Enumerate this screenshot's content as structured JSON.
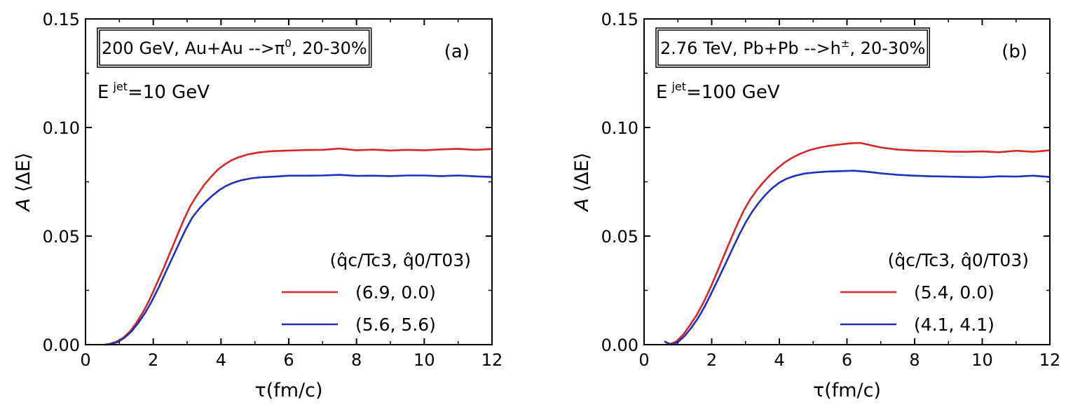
{
  "chart_data": [
    {
      "type": "line",
      "panel_label": "(a)",
      "annotation_box": {
        "main": "200 GeV, Au+Au -->π",
        "sup": "0",
        "tail": ", 20-30%"
      },
      "energy_label": {
        "base": "E",
        "sup": "jet",
        "tail": "=10 GeV"
      },
      "xlabel": "τ(fm/c)",
      "ylabel": {
        "italic": "A",
        "rest": " ⟨ΔE⟩"
      },
      "xlim": [
        0,
        12
      ],
      "ylim": [
        0,
        0.15
      ],
      "xticks": [
        "0",
        "2",
        "4",
        "6",
        "8",
        "10",
        "12"
      ],
      "yticks": [
        "0.00",
        "0.05",
        "0.10",
        "0.15"
      ],
      "legend_title": "(q̂c/Tc3, q̂0/T03)",
      "grid": false,
      "legend_position": "bottom-right",
      "series": [
        {
          "name": "(6.9, 0.0)",
          "color": "#d62728",
          "points": [
            [
              0.55,
              0.0
            ],
            [
              0.7,
              0.0003
            ],
            [
              0.9,
              0.0013
            ],
            [
              1.1,
              0.003
            ],
            [
              1.3,
              0.0058
            ],
            [
              1.5,
              0.01
            ],
            [
              1.7,
              0.015
            ],
            [
              1.9,
              0.021
            ],
            [
              2.1,
              0.028
            ],
            [
              2.3,
              0.035
            ],
            [
              2.5,
              0.0425
            ],
            [
              2.7,
              0.05
            ],
            [
              2.9,
              0.0575
            ],
            [
              3.1,
              0.064
            ],
            [
              3.3,
              0.069
            ],
            [
              3.5,
              0.0735
            ],
            [
              3.7,
              0.0772
            ],
            [
              3.9,
              0.0805
            ],
            [
              4.1,
              0.0829
            ],
            [
              4.3,
              0.0848
            ],
            [
              4.5,
              0.0862
            ],
            [
              4.8,
              0.0876
            ],
            [
              5.1,
              0.0885
            ],
            [
              5.5,
              0.0891
            ],
            [
              6.0,
              0.0894
            ],
            [
              6.5,
              0.0896
            ],
            [
              7.0,
              0.0897
            ],
            [
              7.5,
              0.0903
            ],
            [
              8.0,
              0.0895
            ],
            [
              8.5,
              0.0898
            ],
            [
              9.0,
              0.0894
            ],
            [
              9.5,
              0.0897
            ],
            [
              10.0,
              0.0895
            ],
            [
              10.5,
              0.0899
            ],
            [
              11.0,
              0.0902
            ],
            [
              11.5,
              0.0897
            ],
            [
              12.0,
              0.0901
            ]
          ]
        },
        {
          "name": "(5.6, 5.6)",
          "color": "#1f2fbf",
          "points": [
            [
              0.6,
              0.0
            ],
            [
              0.75,
              0.0003
            ],
            [
              0.95,
              0.0012
            ],
            [
              1.15,
              0.0032
            ],
            [
              1.35,
              0.006
            ],
            [
              1.55,
              0.0098
            ],
            [
              1.75,
              0.0144
            ],
            [
              1.95,
              0.0198
            ],
            [
              2.15,
              0.026
            ],
            [
              2.35,
              0.0328
            ],
            [
              2.55,
              0.0395
            ],
            [
              2.75,
              0.0462
            ],
            [
              2.95,
              0.0528
            ],
            [
              3.15,
              0.0585
            ],
            [
              3.35,
              0.0625
            ],
            [
              3.55,
              0.0658
            ],
            [
              3.75,
              0.0687
            ],
            [
              3.95,
              0.0712
            ],
            [
              4.15,
              0.0731
            ],
            [
              4.35,
              0.0745
            ],
            [
              4.6,
              0.0757
            ],
            [
              4.9,
              0.0766
            ],
            [
              5.2,
              0.0771
            ],
            [
              5.6,
              0.0774
            ],
            [
              6.0,
              0.0778
            ],
            [
              6.5,
              0.0778
            ],
            [
              7.0,
              0.0779
            ],
            [
              7.5,
              0.0782
            ],
            [
              8.0,
              0.0777
            ],
            [
              8.5,
              0.0778
            ],
            [
              9.0,
              0.0776
            ],
            [
              9.5,
              0.0779
            ],
            [
              10.0,
              0.0779
            ],
            [
              10.5,
              0.0776
            ],
            [
              11.0,
              0.0779
            ],
            [
              11.5,
              0.0775
            ],
            [
              12.0,
              0.0772
            ]
          ]
        }
      ]
    },
    {
      "type": "line",
      "panel_label": "(b)",
      "annotation_box": {
        "main": "2.76 TeV, Pb+Pb -->h",
        "sup": "±",
        "tail": ", 20-30%"
      },
      "energy_label": {
        "base": "E",
        "sup": "jet",
        "tail": "=100 GeV"
      },
      "xlabel": "τ(fm/c)",
      "ylabel": {
        "italic": "A",
        "rest": " ⟨ΔE⟩"
      },
      "xlim": [
        0,
        12
      ],
      "ylim": [
        0,
        0.15
      ],
      "xticks": [
        "0",
        "2",
        "4",
        "6",
        "8",
        "10",
        "12"
      ],
      "yticks": [
        "0.00",
        "0.05",
        "0.10",
        "0.15"
      ],
      "legend_title": "(q̂c/Tc3, q̂0/T03)",
      "grid": false,
      "legend_position": "bottom-right",
      "series": [
        {
          "name": "(5.4, 0.0)",
          "color": "#d62728",
          "points": [
            [
              0.6,
              0.0015
            ],
            [
              0.75,
              0.0002
            ],
            [
              0.95,
              0.0014
            ],
            [
              1.15,
              0.0045
            ],
            [
              1.35,
              0.0088
            ],
            [
              1.55,
              0.0135
            ],
            [
              1.75,
              0.0192
            ],
            [
              1.95,
              0.0258
            ],
            [
              2.15,
              0.033
            ],
            [
              2.35,
              0.0405
            ],
            [
              2.55,
              0.048
            ],
            [
              2.75,
              0.0552
            ],
            [
              2.95,
              0.0618
            ],
            [
              3.15,
              0.0672
            ],
            [
              3.35,
              0.0715
            ],
            [
              3.55,
              0.0752
            ],
            [
              3.75,
              0.0785
            ],
            [
              3.95,
              0.0813
            ],
            [
              4.15,
              0.0838
            ],
            [
              4.35,
              0.0858
            ],
            [
              4.6,
              0.0878
            ],
            [
              4.9,
              0.0896
            ],
            [
              5.2,
              0.0908
            ],
            [
              5.5,
              0.0916
            ],
            [
              5.8,
              0.0922
            ],
            [
              6.1,
              0.0927
            ],
            [
              6.4,
              0.0929
            ],
            [
              6.7,
              0.0918
            ],
            [
              7.0,
              0.0908
            ],
            [
              7.5,
              0.0898
            ],
            [
              8.0,
              0.0894
            ],
            [
              8.5,
              0.0892
            ],
            [
              9.0,
              0.0889
            ],
            [
              9.5,
              0.0888
            ],
            [
              10.0,
              0.089
            ],
            [
              10.5,
              0.0886
            ],
            [
              11.0,
              0.0893
            ],
            [
              11.5,
              0.0888
            ],
            [
              12.0,
              0.0895
            ]
          ]
        },
        {
          "name": "(4.1, 4.1)",
          "color": "#1f2fbf",
          "points": [
            [
              0.6,
              0.0015
            ],
            [
              0.8,
              0.0
            ],
            [
              1.0,
              0.0012
            ],
            [
              1.2,
              0.004
            ],
            [
              1.4,
              0.0078
            ],
            [
              1.6,
              0.0123
            ],
            [
              1.8,
              0.0178
            ],
            [
              2.0,
              0.024
            ],
            [
              2.2,
              0.0305
            ],
            [
              2.4,
              0.037
            ],
            [
              2.6,
              0.0437
            ],
            [
              2.8,
              0.0502
            ],
            [
              3.0,
              0.0562
            ],
            [
              3.2,
              0.0613
            ],
            [
              3.4,
              0.0655
            ],
            [
              3.6,
              0.0692
            ],
            [
              3.8,
              0.0722
            ],
            [
              4.0,
              0.0746
            ],
            [
              4.2,
              0.0763
            ],
            [
              4.45,
              0.0777
            ],
            [
              4.75,
              0.0788
            ],
            [
              5.05,
              0.0793
            ],
            [
              5.4,
              0.0797
            ],
            [
              5.8,
              0.0799
            ],
            [
              6.2,
              0.0801
            ],
            [
              6.6,
              0.0796
            ],
            [
              7.0,
              0.0789
            ],
            [
              7.5,
              0.0782
            ],
            [
              8.0,
              0.0778
            ],
            [
              8.5,
              0.0775
            ],
            [
              9.0,
              0.0774
            ],
            [
              9.5,
              0.0772
            ],
            [
              10.0,
              0.0771
            ],
            [
              10.5,
              0.0775
            ],
            [
              11.0,
              0.0774
            ],
            [
              11.5,
              0.0778
            ],
            [
              12.0,
              0.0772
            ]
          ]
        }
      ]
    }
  ]
}
